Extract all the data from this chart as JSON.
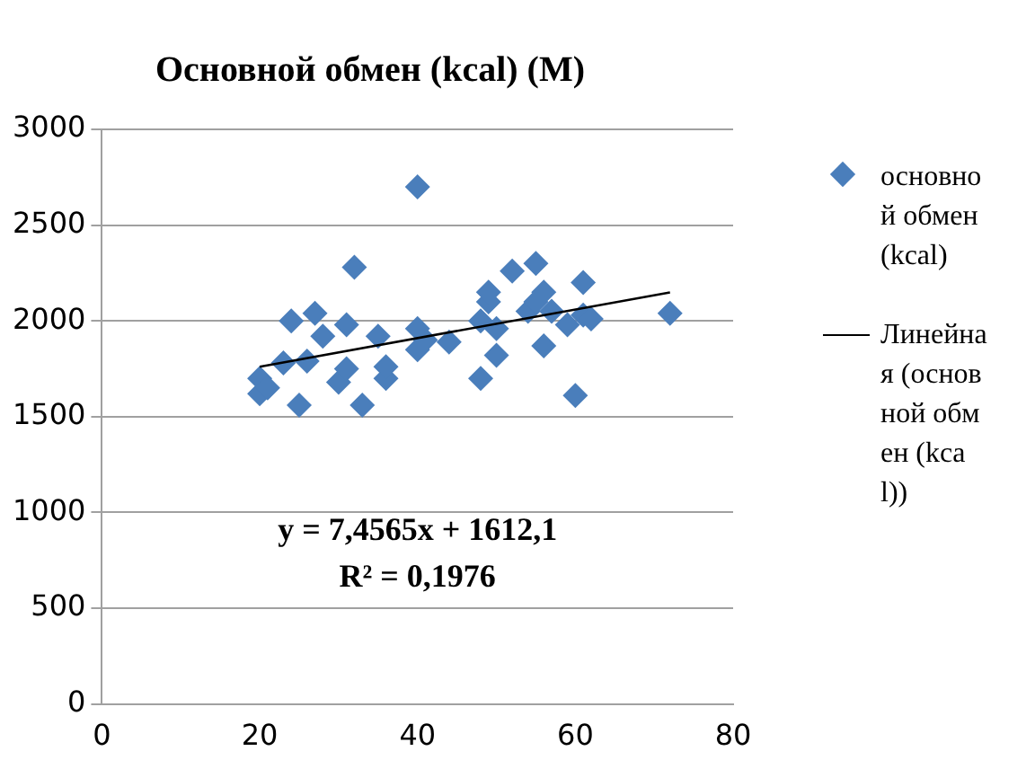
{
  "chart_data": {
    "type": "scatter",
    "title": "Основной обмен (kcal) (M)",
    "xlim": [
      0,
      80
    ],
    "xticks": [
      0,
      20,
      40,
      60,
      80
    ],
    "ylim": [
      0,
      3000
    ],
    "yticks": [
      0,
      500,
      1000,
      1500,
      2000,
      2500,
      3000
    ],
    "grid": "y",
    "legend": "right",
    "marker": "diamond",
    "annotations": [
      "y = 7,4565x + 1612,1",
      "R² = 0,1976"
    ],
    "series": [
      {
        "name": "основной обмен (kcal)",
        "color": "#4a7ebb",
        "x": [
          20,
          20,
          21,
          23,
          24,
          25,
          26,
          27,
          28,
          30,
          31,
          31,
          32,
          33,
          35,
          36,
          36,
          40,
          40,
          40,
          41,
          44,
          48,
          48,
          49,
          49,
          50,
          50,
          52,
          54,
          55,
          55,
          56,
          56,
          57,
          59,
          60,
          61,
          61,
          62,
          72
        ],
        "values": [
          1700,
          1620,
          1650,
          1780,
          2000,
          1560,
          1790,
          2040,
          1920,
          1680,
          1980,
          1750,
          2280,
          1560,
          1920,
          1700,
          1760,
          2700,
          1960,
          1850,
          1900,
          1890,
          1700,
          2000,
          2100,
          2150,
          1820,
          1960,
          2260,
          2050,
          2300,
          2100,
          1870,
          2150,
          2050,
          1980,
          1610,
          2200,
          2030,
          2010,
          2040
        ]
      },
      {
        "name": "Линейная (основной обмен (kcal))",
        "type": "line",
        "color": "#000000",
        "marker": "none",
        "line_style": "solid",
        "x": [
          20,
          72
        ],
        "values": [
          1761,
          2149
        ]
      }
    ]
  }
}
